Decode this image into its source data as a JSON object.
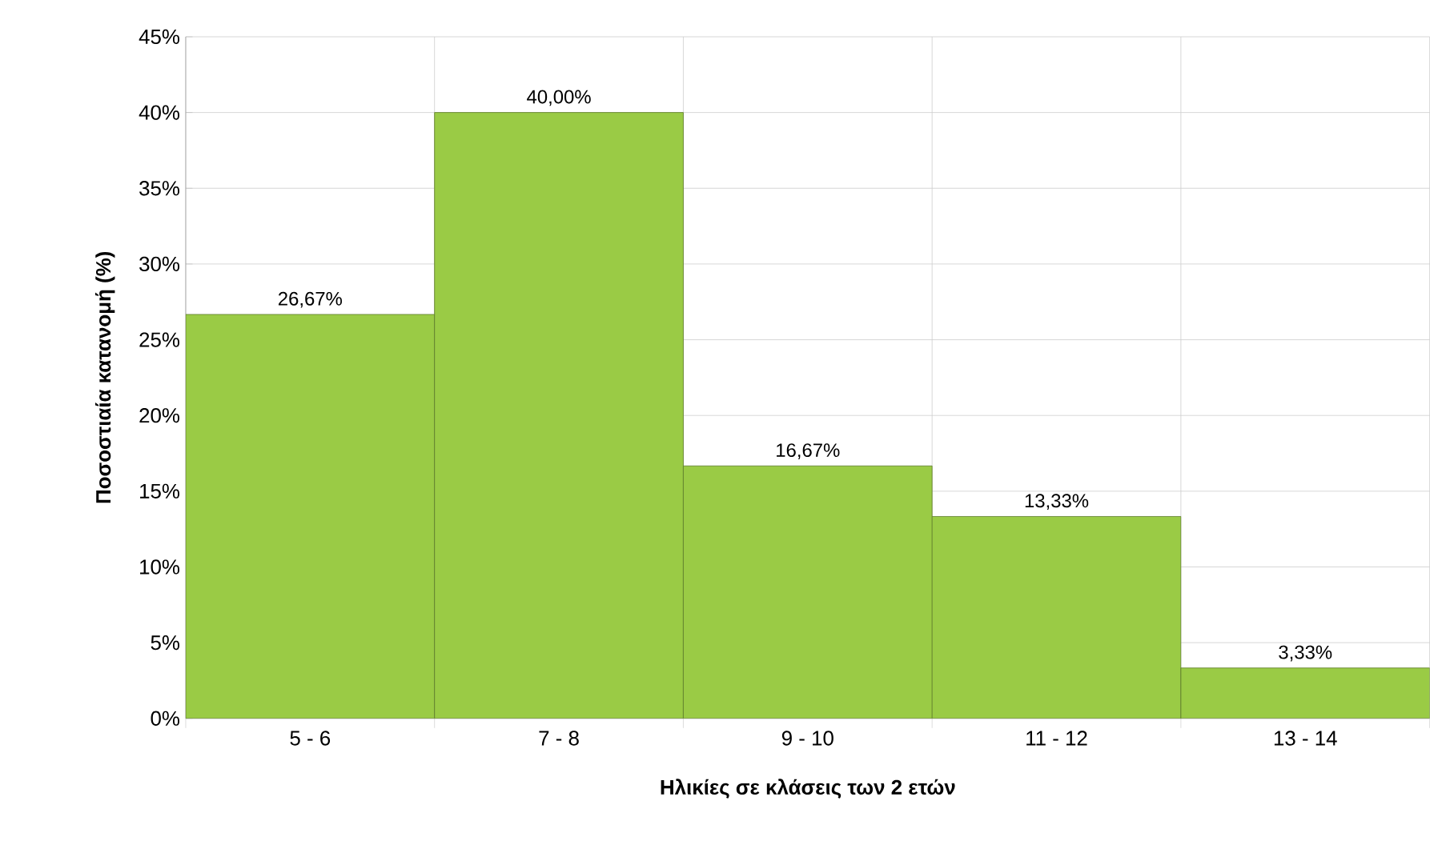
{
  "chart_data": {
    "type": "bar",
    "categories": [
      "5 - 6",
      "7 - 8",
      "9 - 10",
      "11 - 12",
      "13 - 14"
    ],
    "values": [
      26.67,
      40,
      16.67,
      13.33,
      3.33
    ],
    "value_labels": [
      "26,67%",
      "40,00%",
      "16,67%",
      "13,33%",
      "3,33%"
    ],
    "color": "#9acb45",
    "xlabel": "Ηλικίες σε κλάσεις των 2 ετών",
    "ylabel": "Ποσοστιαία κατανομή (%)",
    "ylim": [
      0,
      45
    ],
    "yticks": [
      {
        "value": 0,
        "label": "0%"
      },
      {
        "value": 5,
        "label": "5%"
      },
      {
        "value": 10,
        "label": "10%"
      },
      {
        "value": 15,
        "label": "15%"
      },
      {
        "value": 20,
        "label": "20%"
      },
      {
        "value": 25,
        "label": "25%"
      },
      {
        "value": 30,
        "label": "30%"
      },
      {
        "value": 35,
        "label": "35%"
      },
      {
        "value": 40,
        "label": "40%"
      },
      {
        "value": 45,
        "label": "45%"
      }
    ],
    "grid": true
  }
}
